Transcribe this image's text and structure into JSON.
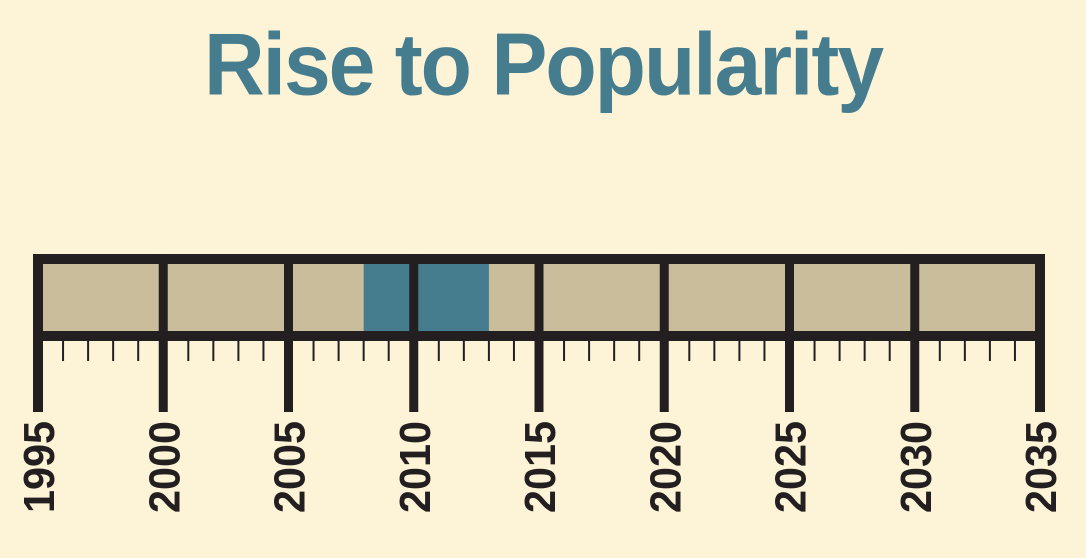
{
  "title": "Rise to Popularity",
  "timeline": {
    "start_year": 1995,
    "end_year": 2035,
    "minor_tick_step": 1,
    "major_tick_step": 5,
    "labels": [
      "1995",
      "2000",
      "2005",
      "2010",
      "2015",
      "2020",
      "2025",
      "2030",
      "2035"
    ],
    "highlight": {
      "start": 2008,
      "end": 2013
    }
  },
  "colors": {
    "background": "#fdf3d7",
    "title": "#457d8e",
    "bar_fill": "#c9bd9c",
    "highlight": "#457d8e",
    "frame": "#231f20"
  }
}
